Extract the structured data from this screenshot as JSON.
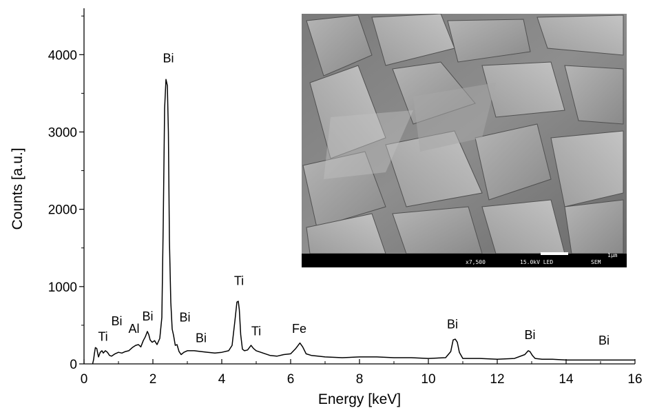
{
  "chart_data": {
    "type": "line",
    "title": "",
    "xlabel": "Energy [keV]",
    "ylabel": "Counts [a.u.]",
    "xlim": [
      0,
      16
    ],
    "ylim": [
      0,
      4600
    ],
    "xticks": [
      0,
      2,
      4,
      6,
      8,
      10,
      12,
      14,
      16
    ],
    "yticks": [
      0,
      1000,
      2000,
      3000,
      4000
    ],
    "grid": false,
    "series": [
      {
        "color": "#000000",
        "x": [
          0.25,
          0.28,
          0.3,
          0.33,
          0.37,
          0.42,
          0.47,
          0.52,
          0.56,
          0.62,
          0.68,
          0.74,
          0.8,
          0.9,
          1.0,
          1.1,
          1.2,
          1.3,
          1.4,
          1.5,
          1.58,
          1.65,
          1.72,
          1.78,
          1.84,
          1.88,
          1.92,
          1.98,
          2.05,
          2.12,
          2.2,
          2.26,
          2.3,
          2.34,
          2.38,
          2.42,
          2.45,
          2.48,
          2.52,
          2.56,
          2.6,
          2.65,
          2.7,
          2.76,
          2.82,
          2.9,
          3.0,
          3.2,
          3.4,
          3.6,
          3.8,
          4.0,
          4.2,
          4.3,
          4.38,
          4.44,
          4.48,
          4.51,
          4.55,
          4.6,
          4.66,
          4.75,
          4.85,
          4.92,
          5.0,
          5.2,
          5.4,
          5.6,
          5.8,
          6.0,
          6.15,
          6.27,
          6.35,
          6.45,
          6.6,
          6.8,
          7.0,
          7.5,
          8.0,
          8.5,
          9.0,
          9.5,
          10.0,
          10.5,
          10.65,
          10.72,
          10.78,
          10.84,
          10.9,
          11.0,
          11.5,
          12.0,
          12.5,
          12.8,
          12.9,
          12.95,
          13.02,
          13.1,
          13.3,
          13.6,
          14.0,
          14.5,
          15.0,
          15.2,
          15.5,
          16.0
        ],
        "values": [
          0,
          60,
          130,
          210,
          200,
          90,
          150,
          170,
          140,
          170,
          150,
          110,
          100,
          130,
          150,
          140,
          160,
          170,
          210,
          240,
          250,
          220,
          300,
          350,
          420,
          380,
          310,
          280,
          300,
          250,
          330,
          600,
          1800,
          3300,
          3680,
          3600,
          3000,
          1600,
          800,
          450,
          370,
          240,
          250,
          160,
          120,
          150,
          170,
          170,
          160,
          150,
          140,
          150,
          170,
          240,
          550,
          800,
          810,
          700,
          380,
          190,
          170,
          180,
          240,
          200,
          170,
          140,
          110,
          100,
          120,
          130,
          200,
          270,
          220,
          130,
          110,
          100,
          90,
          80,
          90,
          90,
          80,
          80,
          70,
          80,
          160,
          310,
          320,
          280,
          150,
          70,
          70,
          60,
          70,
          120,
          170,
          160,
          110,
          70,
          60,
          60,
          50,
          50,
          50,
          50,
          50,
          50
        ]
      }
    ],
    "annotations": [
      {
        "text": "Ti",
        "x": 0.55,
        "y": 300
      },
      {
        "text": "Bi",
        "x": 0.95,
        "y": 500
      },
      {
        "text": "Al",
        "x": 1.45,
        "y": 400
      },
      {
        "text": "Bi",
        "x": 1.85,
        "y": 560
      },
      {
        "text": "Bi",
        "x": 2.45,
        "y": 3900
      },
      {
        "text": "Bi",
        "x": 2.93,
        "y": 550
      },
      {
        "text": "Bi",
        "x": 3.4,
        "y": 280
      },
      {
        "text": "Ti",
        "x": 4.5,
        "y": 1020
      },
      {
        "text": "Ti",
        "x": 5.0,
        "y": 370
      },
      {
        "text": "Fe",
        "x": 6.25,
        "y": 400
      },
      {
        "text": "Bi",
        "x": 10.7,
        "y": 460
      },
      {
        "text": "Bi",
        "x": 12.95,
        "y": 320
      },
      {
        "text": "Bi",
        "x": 15.1,
        "y": 250
      }
    ]
  },
  "inset": {
    "caption_left": "x7,500",
    "caption_mid": "15.0kV LED",
    "caption_right": "SEM",
    "scale_label": "1μm"
  }
}
